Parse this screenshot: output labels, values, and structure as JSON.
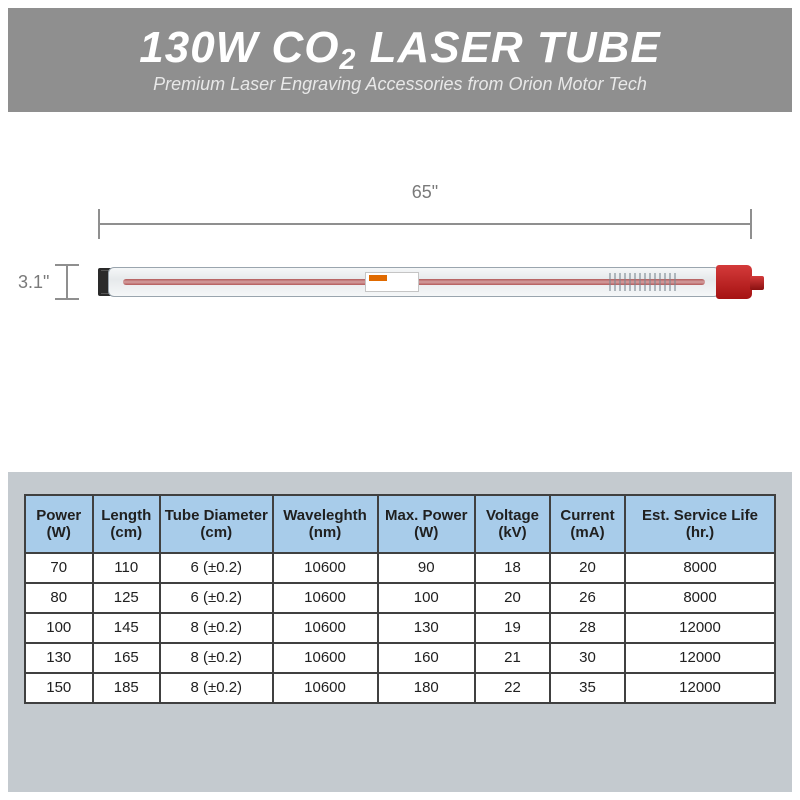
{
  "header": {
    "title_prefix": "130W CO",
    "title_sub": "2",
    "title_suffix": " LASER TUBE",
    "subtitle": "Premium Laser Engraving Accessories from Orion Motor Tech"
  },
  "dimensions": {
    "length_label": "65\"",
    "height_label": "3.1\""
  },
  "colors": {
    "header_bg": "#8f8f8f",
    "table_outer_bg": "#c4cacf",
    "table_header_bg": "#a8ccea",
    "border_color": "#404040",
    "tube_red": "#c02626",
    "dim_gray": "#8f8f8f"
  },
  "table": {
    "columns": [
      {
        "l1": "Power",
        "l2": "(W)",
        "width": "9%"
      },
      {
        "l1": "Length",
        "l2": "(cm)",
        "width": "9%"
      },
      {
        "l1": "Tube Diameter",
        "l2": "(cm)",
        "width": "15%"
      },
      {
        "l1": "Waveleghth",
        "l2": "(nm)",
        "width": "14%"
      },
      {
        "l1": "Max. Power",
        "l2": "(W)",
        "width": "13%"
      },
      {
        "l1": "Voltage",
        "l2": "(kV)",
        "width": "10%"
      },
      {
        "l1": "Current",
        "l2": "(mA)",
        "width": "10%"
      },
      {
        "l1": "Est. Service Life",
        "l2": "(hr.)",
        "width": "20%"
      }
    ],
    "rows": [
      [
        "70",
        "110",
        "6 (±0.2)",
        "10600",
        "90",
        "18",
        "20",
        "8000"
      ],
      [
        "80",
        "125",
        "6 (±0.2)",
        "10600",
        "100",
        "20",
        "26",
        "8000"
      ],
      [
        "100",
        "145",
        "8 (±0.2)",
        "10600",
        "130",
        "19",
        "28",
        "12000"
      ],
      [
        "130",
        "165",
        "8 (±0.2)",
        "10600",
        "160",
        "21",
        "30",
        "12000"
      ],
      [
        "150",
        "185",
        "8 (±0.2)",
        "10600",
        "180",
        "22",
        "35",
        "12000"
      ]
    ]
  }
}
